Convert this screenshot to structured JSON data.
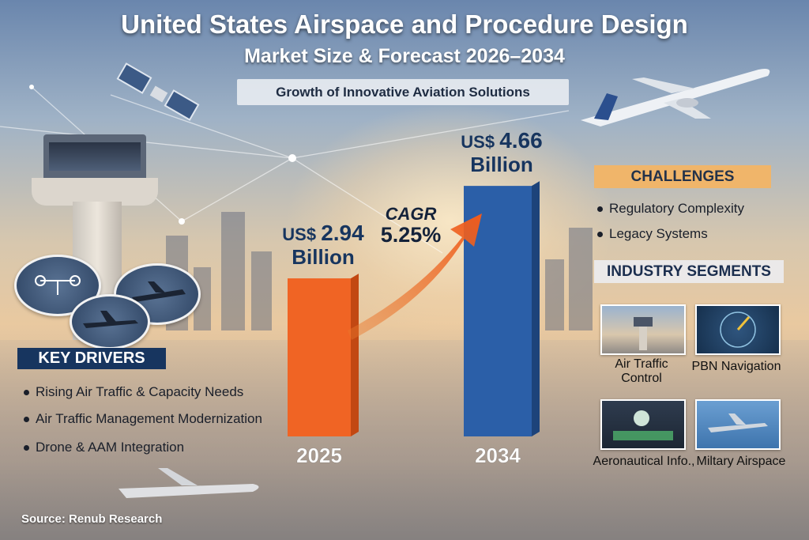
{
  "title": "United States Airspace and Procedure Design",
  "subtitle": "Market Size & Forecast 2026–2034",
  "banner": "Growth of Innovative Aviation Solutions",
  "colors": {
    "navy": "#17355f",
    "orange": "#f06424",
    "blue": "#2b5fa8",
    "gold": "#f0b56a"
  },
  "chart_data": {
    "type": "bar",
    "categories": [
      "2025",
      "2034"
    ],
    "values": [
      2.94,
      4.66
    ],
    "value_labels": [
      {
        "prefix": "US$",
        "amount": "2.94",
        "unit": "Billion"
      },
      {
        "prefix": "US$",
        "amount": "4.66",
        "unit": "Billion"
      }
    ],
    "unit": "US$ Billion",
    "annotation": {
      "label": "CAGR",
      "value": "5.25%"
    },
    "bar_colors": [
      "#f06424",
      "#2b5fa8"
    ],
    "ylim": [
      0,
      5
    ]
  },
  "key_drivers": {
    "heading": "KEY DRIVERS",
    "items": [
      "Rising Air Traffic & Capacity Needs",
      "Air Traffic Management Modernization",
      "Drone & AAM Integration"
    ]
  },
  "challenges": {
    "heading": "CHALLENGES",
    "items": [
      "Regulatory Complexity",
      "Legacy Systems"
    ]
  },
  "segments": {
    "heading": "INDUSTRY SEGMENTS",
    "items": [
      "Air Traffic Control",
      "PBN Navigation",
      "Aeronautical Info.,",
      "Miltary Airspace"
    ]
  },
  "source": "Source: Renub Research"
}
